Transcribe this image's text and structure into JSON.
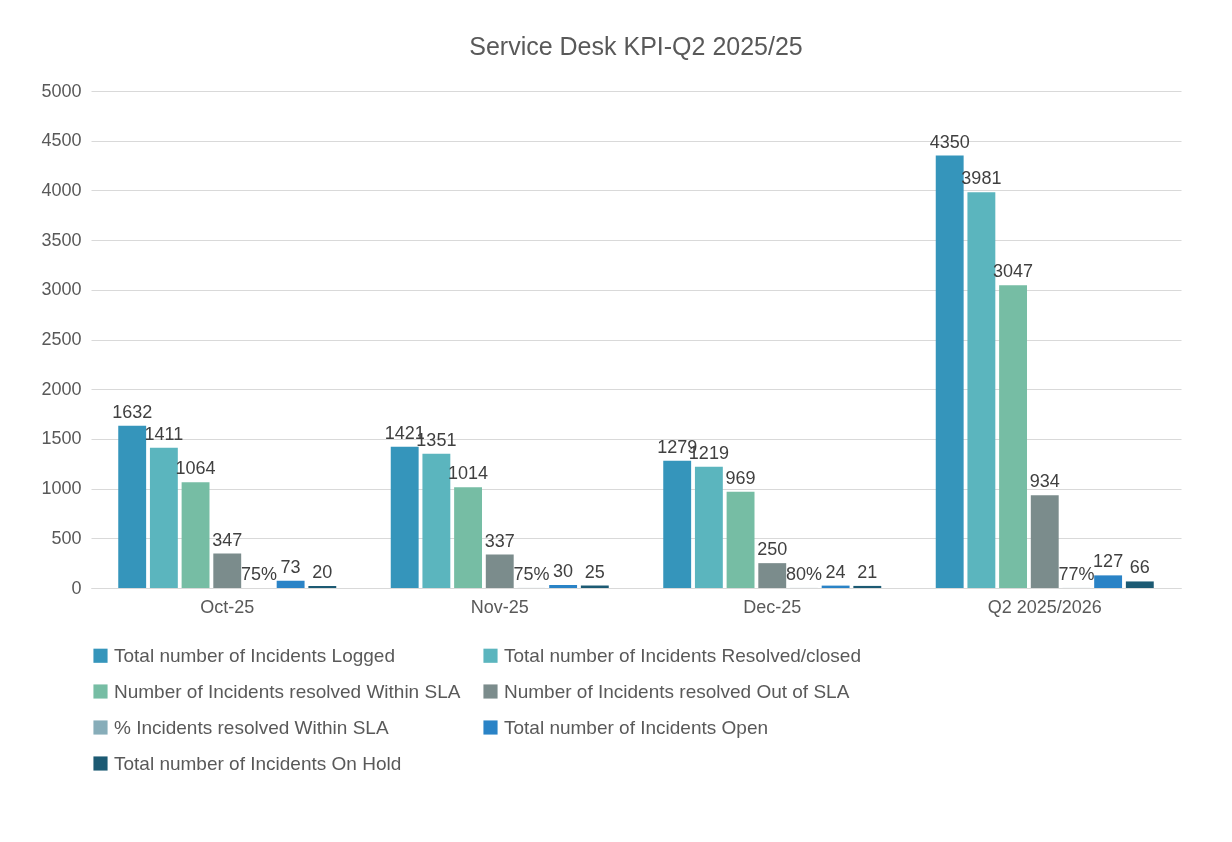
{
  "chart_data": {
    "type": "bar",
    "title": "Service Desk KPI-Q2 2025/25",
    "categories": [
      "Oct-25",
      "Nov-25",
      "Dec-25",
      "Q2 2025/2026"
    ],
    "series": [
      {
        "name": "Total number of Incidents Logged",
        "color": "#3595bb",
        "values": [
          1632,
          1421,
          1279,
          4350
        ]
      },
      {
        "name": "Total number of Incidents Resolved/closed",
        "color": "#5bb5be",
        "values": [
          1411,
          1351,
          1219,
          3981
        ]
      },
      {
        "name": "Number of Incidents resolved Within SLA",
        "color": "#76bda4",
        "values": [
          1064,
          1014,
          969,
          3047
        ]
      },
      {
        "name": "Number of Incidents resolved Out of SLA",
        "color": "#7b8c8c",
        "values": [
          347,
          337,
          250,
          934
        ]
      },
      {
        "name": "% Incidents resolved Within SLA",
        "color": "#87adb9",
        "values": [
          0.75,
          0.75,
          0.8,
          0.77
        ],
        "value_labels": [
          "75%",
          "75%",
          "80%",
          "77%"
        ]
      },
      {
        "name": "Total number of Incidents Open",
        "color": "#2a83c6",
        "values": [
          73,
          30,
          24,
          127
        ]
      },
      {
        "name": "Total number of Incidents On Hold",
        "color": "#1c5a73",
        "values": [
          20,
          25,
          21,
          66
        ]
      }
    ],
    "ylim": [
      0,
      5000
    ],
    "yticks": [
      0,
      500,
      1000,
      1500,
      2000,
      2500,
      3000,
      3500,
      4000,
      4500,
      5000
    ],
    "grid": "y",
    "legend": "bottom",
    "data_labels": true
  }
}
